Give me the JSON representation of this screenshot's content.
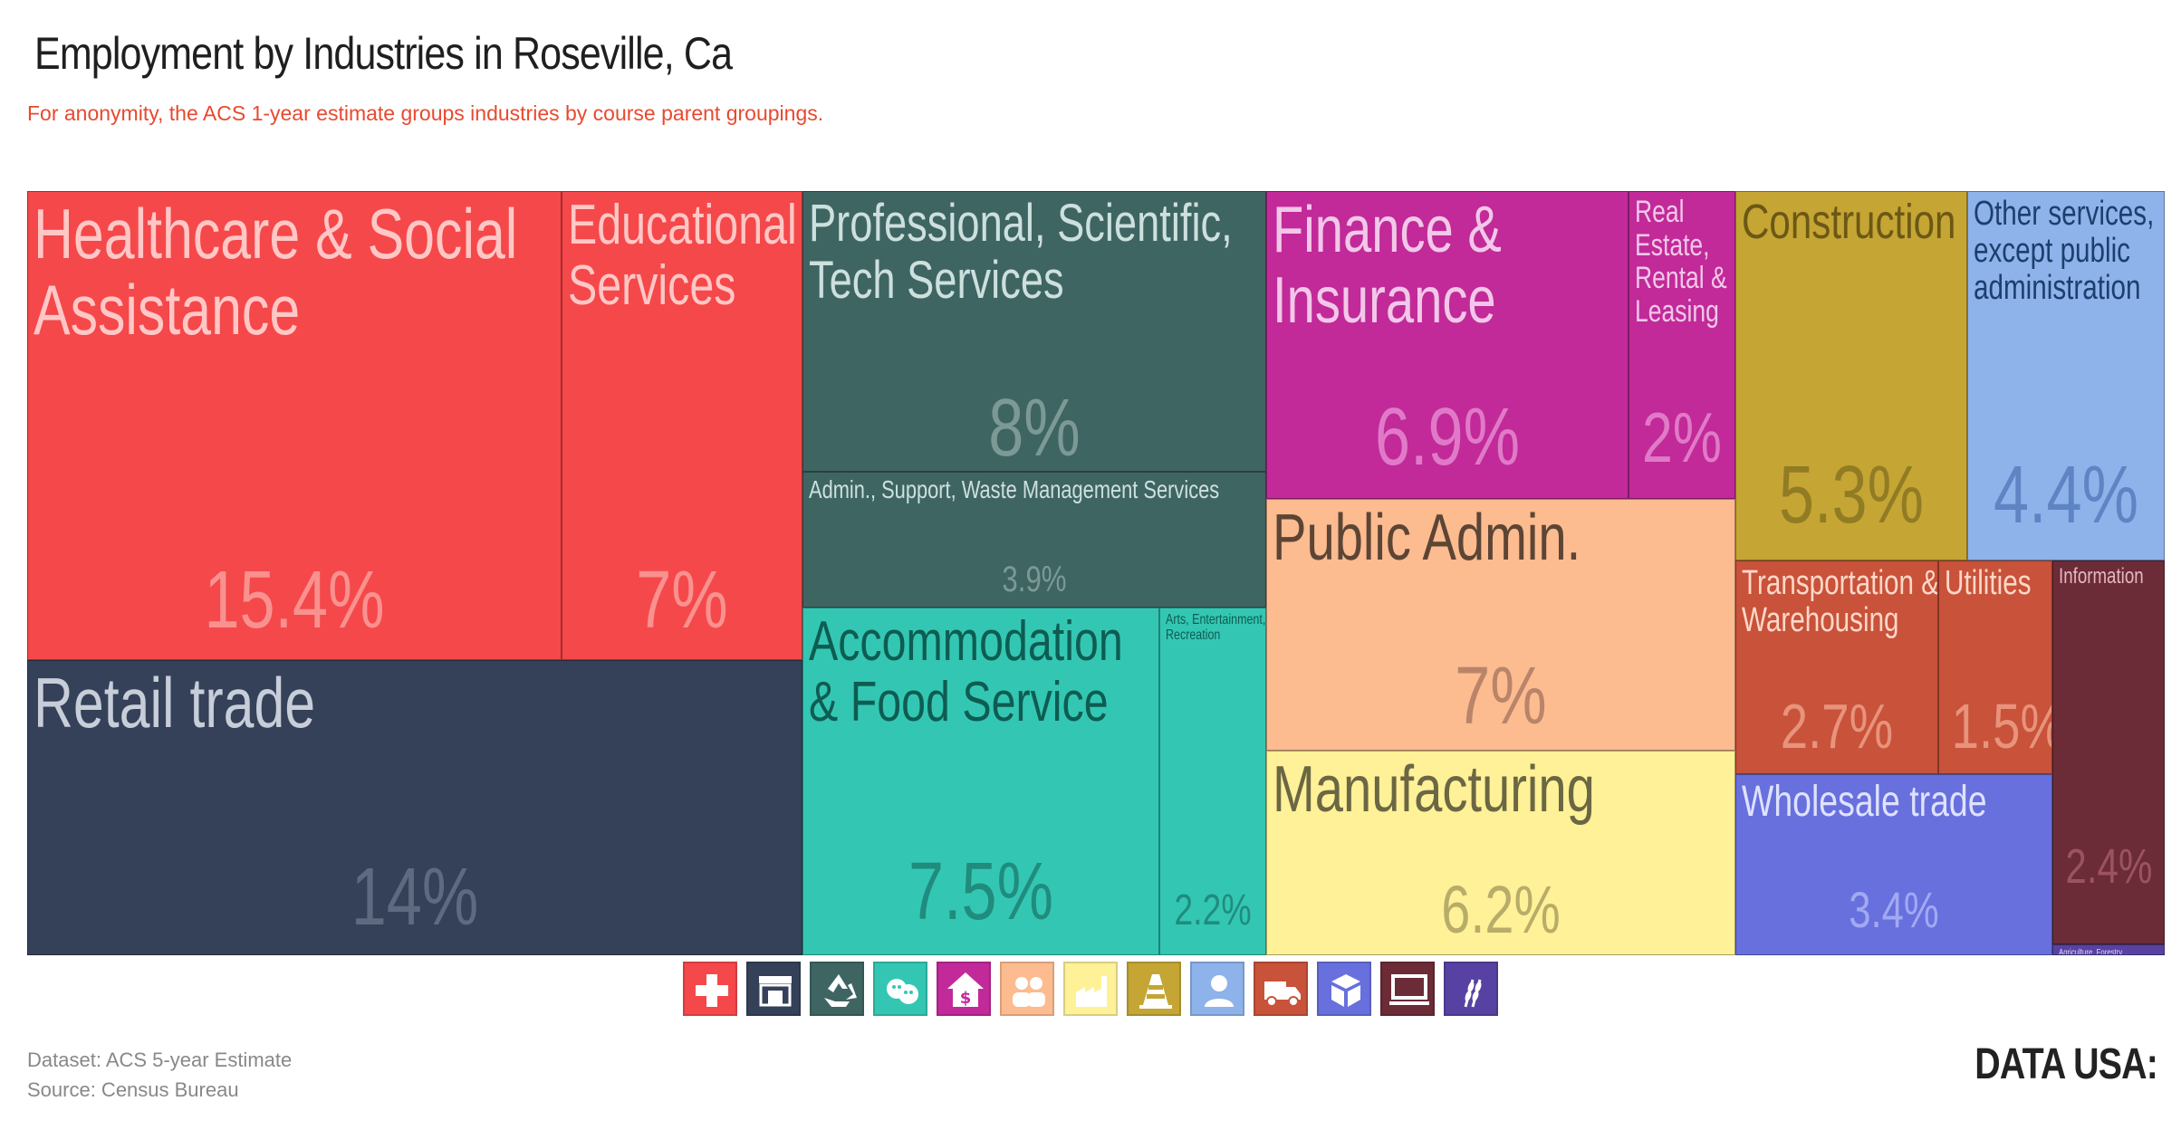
{
  "chart_data": {
    "type": "treemap",
    "title": "Employment by Industries in Roseville, Ca",
    "subtitle": "For anonymity, the ACS 1-year estimate groups industries by course parent groupings.",
    "tiles": [
      {
        "label": "Healthcare & Social Assistance",
        "value": "15.4%",
        "color": "#f5484a"
      },
      {
        "label": "Educational Services",
        "value": "7%",
        "color": "#f5484a"
      },
      {
        "label": "Retail trade",
        "value": "14%",
        "color": "#344158"
      },
      {
        "label": "Professional, Scientific, Tech Services",
        "value": "8%",
        "color": "#3e6562"
      },
      {
        "label": "Admin., Support, Waste Management Services",
        "value": "3.9%",
        "color": "#3e6562"
      },
      {
        "label": "Accommodation & Food Service",
        "value": "7.5%",
        "color": "#33c7b3"
      },
      {
        "label": "Arts, Entertainment, Recreation",
        "value": "2.2%",
        "color": "#33c7b3"
      },
      {
        "label": "Finance & Insurance",
        "value": "6.9%",
        "color": "#c12a98"
      },
      {
        "label": "Real Estate, Rental & Leasing",
        "value": "2%",
        "color": "#c12a98"
      },
      {
        "label": "Public Admin.",
        "value": "7%",
        "color": "#fdbb90"
      },
      {
        "label": "Manufacturing",
        "value": "6.2%",
        "color": "#fff197"
      },
      {
        "label": "Construction",
        "value": "5.3%",
        "color": "#c5a533"
      },
      {
        "label": "Other services, except public administration",
        "value": "4.4%",
        "color": "#8eb2ea"
      },
      {
        "label": "Transportation & Warehousing",
        "value": "2.7%",
        "color": "#c8523a"
      },
      {
        "label": "Utilities",
        "value": "1.5%",
        "color": "#c8523a"
      },
      {
        "label": "Information",
        "value": "2.4%",
        "color": "#6b2b37"
      },
      {
        "label": "Wholesale trade",
        "value": "3.4%",
        "color": "#6770dd"
      },
      {
        "label": "Agriculture, Forestry,...",
        "value": "",
        "color": "#5742a3"
      }
    ]
  },
  "legend": [
    {
      "icon": "medical-cross-icon",
      "color": "#f5484a"
    },
    {
      "icon": "storefront-icon",
      "color": "#344158"
    },
    {
      "icon": "recycle-icon",
      "color": "#3e6562"
    },
    {
      "icon": "theater-masks-icon",
      "color": "#33c7b3"
    },
    {
      "icon": "house-dollar-icon",
      "color": "#c12a98"
    },
    {
      "icon": "people-icon",
      "color": "#fdbb90"
    },
    {
      "icon": "factory-icon",
      "color": "#fff197"
    },
    {
      "icon": "traffic-cone-icon",
      "color": "#c5a533"
    },
    {
      "icon": "person-icon",
      "color": "#8eb2ea"
    },
    {
      "icon": "truck-icon",
      "color": "#c8523a"
    },
    {
      "icon": "boxes-icon",
      "color": "#6770dd"
    },
    {
      "icon": "monitor-icon",
      "color": "#6b2b37"
    },
    {
      "icon": "wheat-icon",
      "color": "#5742a3"
    }
  ],
  "footer": {
    "dataset": "Dataset: ACS 5-year Estimate",
    "source": "Source: Census Bureau",
    "brand": "DATA USA:"
  }
}
